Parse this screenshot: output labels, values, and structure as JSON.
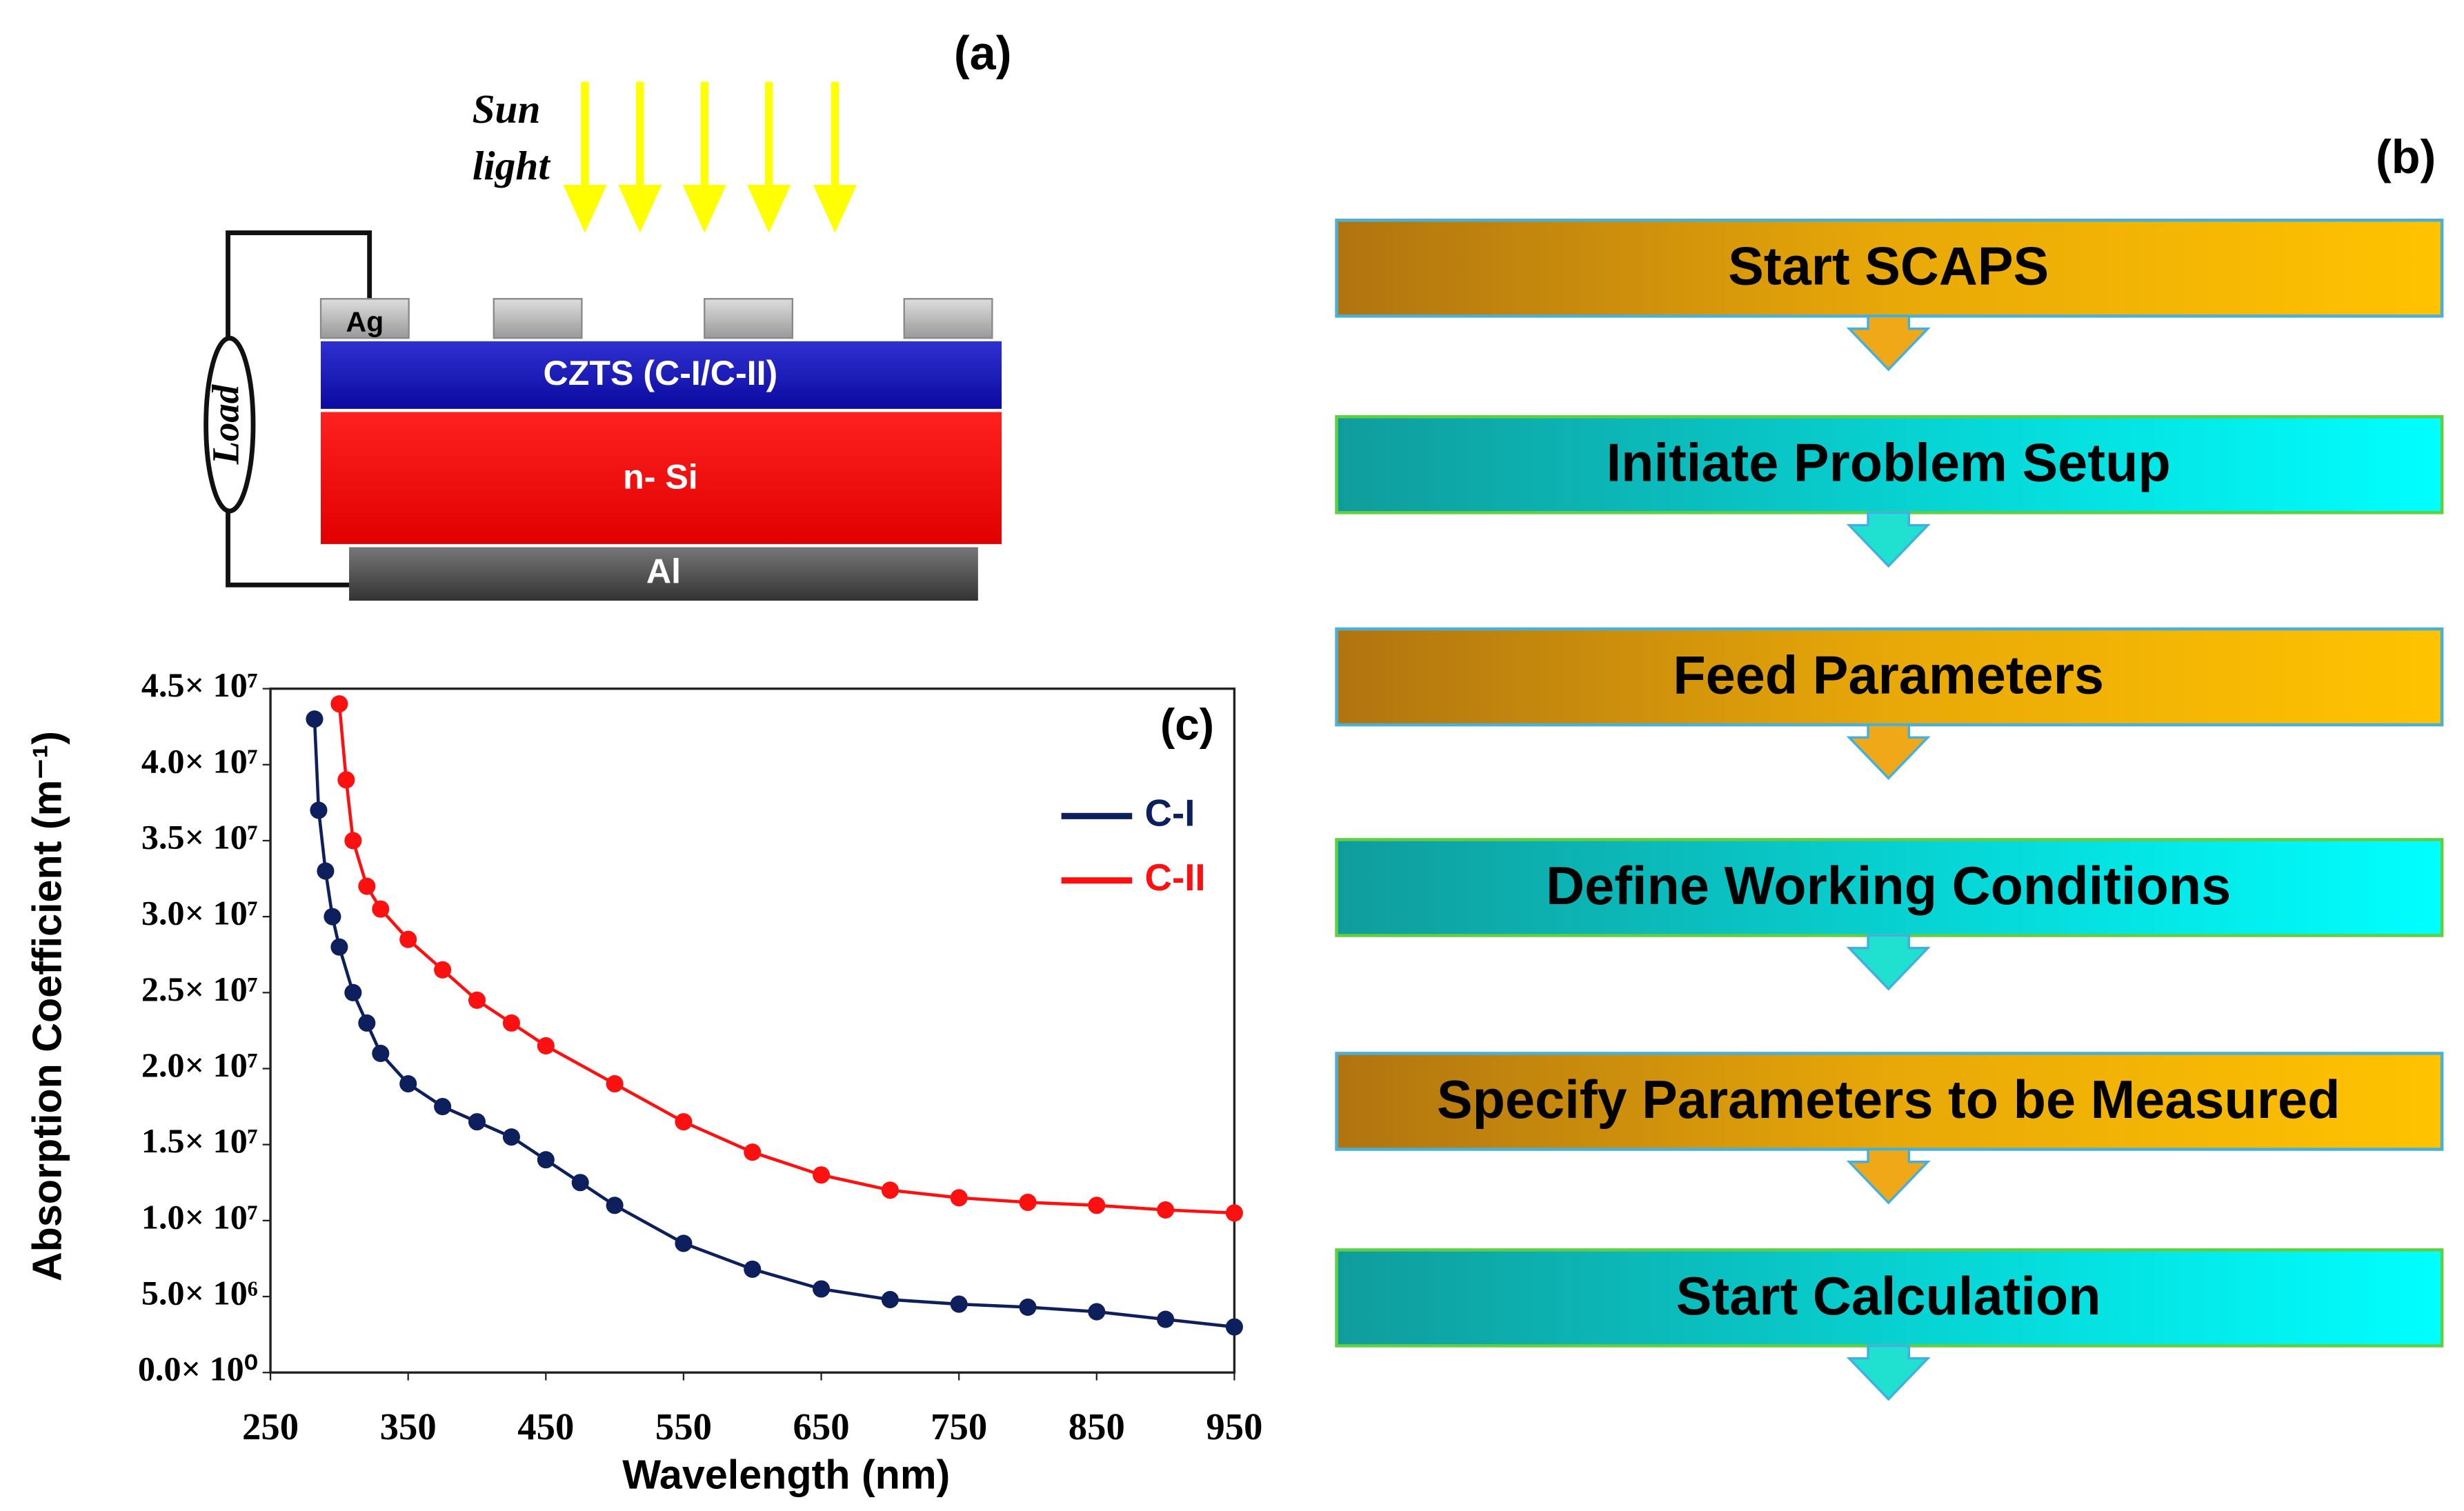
{
  "diagram": {
    "label": "(a)",
    "sun": "Sun",
    "light": "light",
    "load": "Load",
    "ag": "Ag",
    "czts": "CZTS (C-I/C-II)",
    "si": "n- Si",
    "al": "Al"
  },
  "flowchart": {
    "label": "(b)",
    "steps": [
      "Start SCAPS",
      "Initiate Problem Setup",
      "Feed Parameters",
      "Define Working Conditions",
      "Specify Parameters to be Measured",
      "Start Calculation"
    ]
  },
  "chart_data": {
    "type": "line",
    "label": "(c)",
    "xlabel": "Wavelength (nm)",
    "ylabel": "Absorption Coefficient (m⁻¹)",
    "xlim": [
      250,
      950
    ],
    "xticks": [
      250,
      350,
      450,
      550,
      650,
      750,
      850,
      950
    ],
    "ylim": [
      0,
      45000000
    ],
    "yticks": [
      {
        "value": 0,
        "label": "0.0× 10⁰"
      },
      {
        "value": 5000000,
        "label": "5.0× 10⁶"
      },
      {
        "value": 10000000,
        "label": "1.0× 10⁷"
      },
      {
        "value": 15000000,
        "label": "1.5× 10⁷"
      },
      {
        "value": 20000000,
        "label": "2.0× 10⁷"
      },
      {
        "value": 25000000,
        "label": "2.5× 10⁷"
      },
      {
        "value": 30000000,
        "label": "3.0× 10⁷"
      },
      {
        "value": 35000000,
        "label": "3.5× 10⁷"
      },
      {
        "value": 40000000,
        "label": "4.0× 10⁷"
      },
      {
        "value": 45000000,
        "label": "4.5× 10⁷"
      }
    ],
    "legend": "upper right",
    "series": [
      {
        "name": "C-I",
        "color": "#0d1f5c",
        "x": [
          282,
          285,
          290,
          295,
          300,
          310,
          320,
          330,
          350,
          375,
          400,
          425,
          450,
          475,
          500,
          550,
          600,
          650,
          700,
          750,
          800,
          850,
          900,
          950
        ],
        "values": [
          43000000,
          37000000,
          33000000,
          30000000,
          28000000,
          25000000,
          23000000,
          21000000,
          19000000,
          17500000,
          16500000,
          15500000,
          14000000,
          12500000,
          11000000,
          8500000,
          6800000,
          5500000,
          4800000,
          4500000,
          4300000,
          4000000,
          3500000,
          3000000
        ]
      },
      {
        "name": "C-II",
        "color": "#ff1010",
        "x": [
          300,
          305,
          310,
          320,
          330,
          350,
          375,
          400,
          425,
          450,
          500,
          550,
          600,
          650,
          700,
          750,
          800,
          850,
          900,
          950
        ],
        "values": [
          44000000,
          39000000,
          35000000,
          32000000,
          30500000,
          28500000,
          26500000,
          24500000,
          23000000,
          21500000,
          19000000,
          16500000,
          14500000,
          13000000,
          12000000,
          11500000,
          11200000,
          11000000,
          10700000,
          10500000
        ]
      }
    ]
  }
}
